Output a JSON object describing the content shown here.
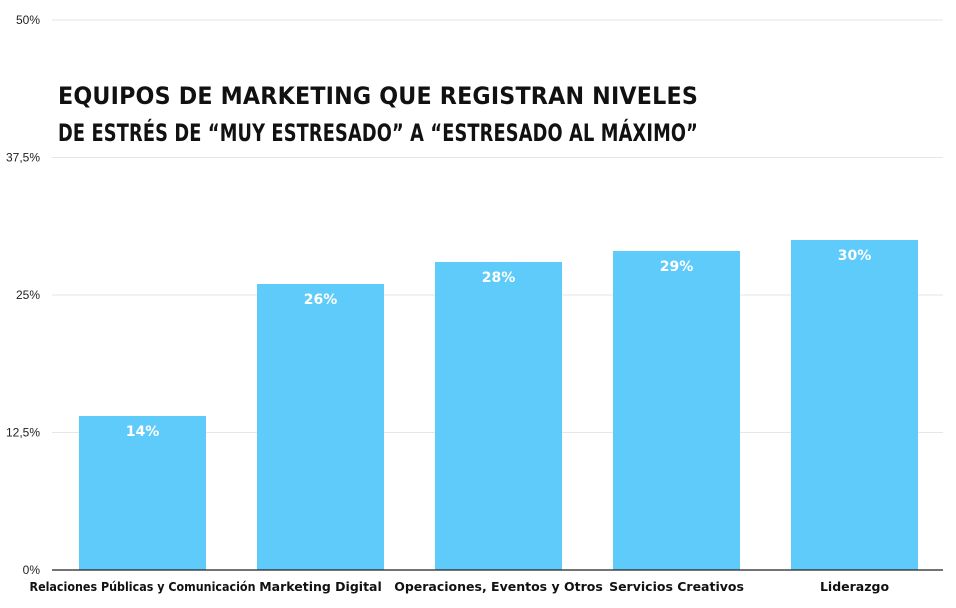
{
  "chart_data": {
    "type": "bar",
    "title_lines": [
      "EQUIPOS DE MARKETING QUE REGISTRAN NIVELES",
      "DE ESTRÉS DE “MUY ESTRESADO” A “ESTRESADO AL MÁXIMO”"
    ],
    "categories": [
      "Relaciones Públicas y Comunicación",
      "Marketing Digital",
      "Operaciones, Eventos y Otros",
      "Servicios Creativos",
      "Liderazgo"
    ],
    "values": [
      14,
      26,
      28,
      29,
      30
    ],
    "data_labels": [
      "14%",
      "26%",
      "28%",
      "29%",
      "30%"
    ],
    "ylim": [
      0,
      50
    ],
    "yticks": [
      0,
      12.5,
      25,
      37.5,
      50
    ],
    "ytick_labels": [
      "0%",
      "12,5%",
      "25%",
      "37,5%",
      "50%"
    ],
    "grid": true,
    "bar_color": "#5ecbfa"
  }
}
